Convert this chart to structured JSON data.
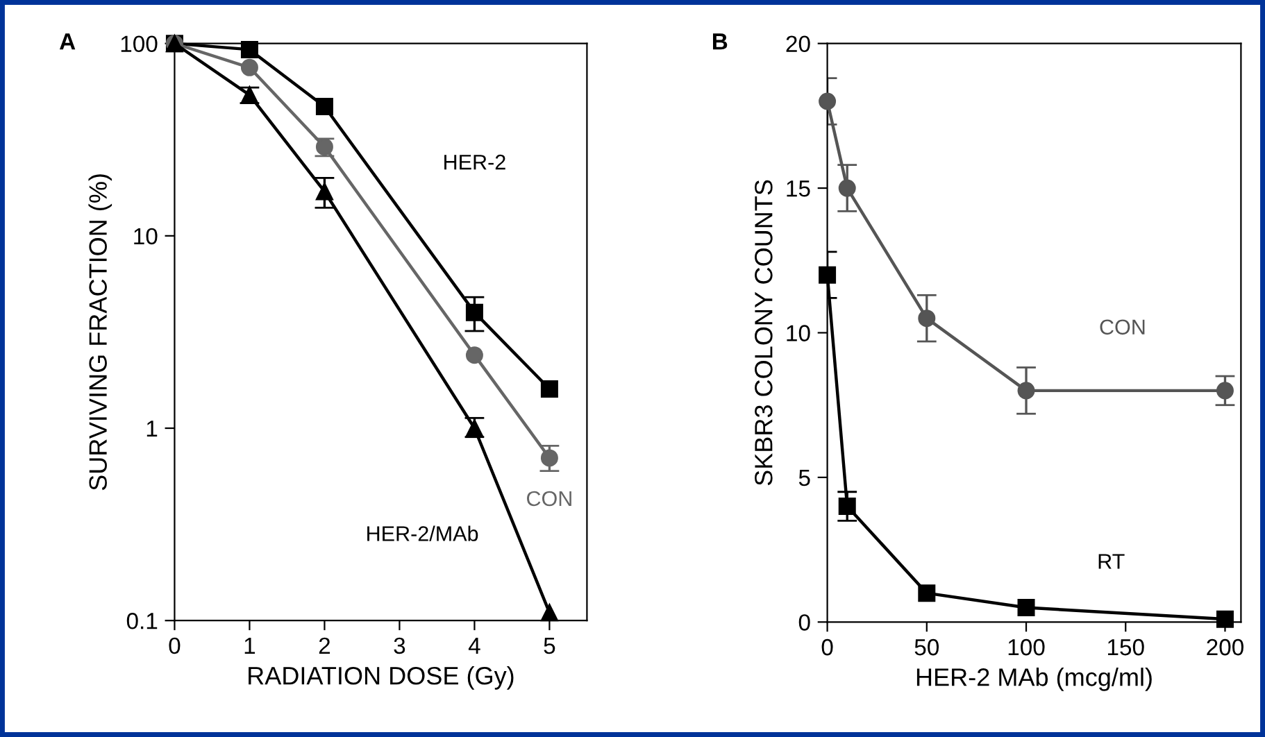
{
  "chart_data": [
    {
      "type": "line",
      "xlabel": "RADIATION DOSE (Gy)",
      "ylabel": "SURVIVING FRACTION (%)",
      "log": "y",
      "xlim": [
        0,
        5.5
      ],
      "xticks": [
        0,
        1,
        2,
        3,
        4,
        5
      ],
      "ylim": [
        0.1,
        100
      ],
      "yticks": [
        0.1,
        1,
        10,
        100
      ],
      "grid": false,
      "legend": false,
      "series": [
        {
          "name": "HER-2",
          "color": "#000000",
          "marker": "square",
          "values": [
            100,
            93,
            47,
            4.0,
            1.6
          ],
          "x": [
            0,
            1,
            2,
            4,
            5
          ],
          "errors": [
            null,
            null,
            null,
            [
              3.2,
              4.8
            ],
            null
          ]
        },
        {
          "name": "CON",
          "color": "#666666",
          "marker": "circle",
          "values": [
            100,
            75,
            29,
            2.4,
            0.7
          ],
          "x": [
            0,
            1,
            2,
            4,
            5
          ],
          "errors": [
            null,
            null,
            3,
            null,
            [
              0.6,
              0.81
            ]
          ]
        },
        {
          "name": "HER-2/MAb",
          "color": "#000000",
          "marker": "triangle",
          "values": [
            100,
            54,
            17,
            1.0,
            0.11
          ],
          "x": [
            0,
            1,
            2,
            4,
            5
          ],
          "errors": [
            null,
            [
              49,
              59
            ],
            [
              14,
              20
            ],
            [
              0.9,
              1.13
            ],
            null
          ]
        }
      ],
      "annotations": [
        "A"
      ]
    },
    {
      "type": "line",
      "xlabel": "HER-2 MAb (mcg/ml)",
      "ylabel": "SKBR3 COLONY COUNTS",
      "xlim": [
        0,
        208
      ],
      "xticks": [
        0,
        50,
        100,
        150,
        200
      ],
      "ylim": [
        0,
        20
      ],
      "yticks": [
        0,
        5,
        10,
        15,
        20
      ],
      "grid": false,
      "legend": false,
      "series": [
        {
          "name": "CON",
          "color": "#555555",
          "marker": "circle",
          "x": [
            0,
            10,
            50,
            100,
            200
          ],
          "values": [
            18,
            15,
            10.5,
            8,
            8
          ],
          "errors": [
            0.8,
            0.8,
            0.8,
            0.8,
            0.5
          ]
        },
        {
          "name": "RT",
          "color": "#000000",
          "marker": "square",
          "x": [
            0,
            10,
            50,
            100,
            200
          ],
          "values": [
            12,
            4,
            1,
            0.5,
            0.1
          ],
          "errors": [
            0.8,
            0.5,
            null,
            null,
            null
          ]
        }
      ],
      "annotations": [
        "B"
      ]
    }
  ]
}
